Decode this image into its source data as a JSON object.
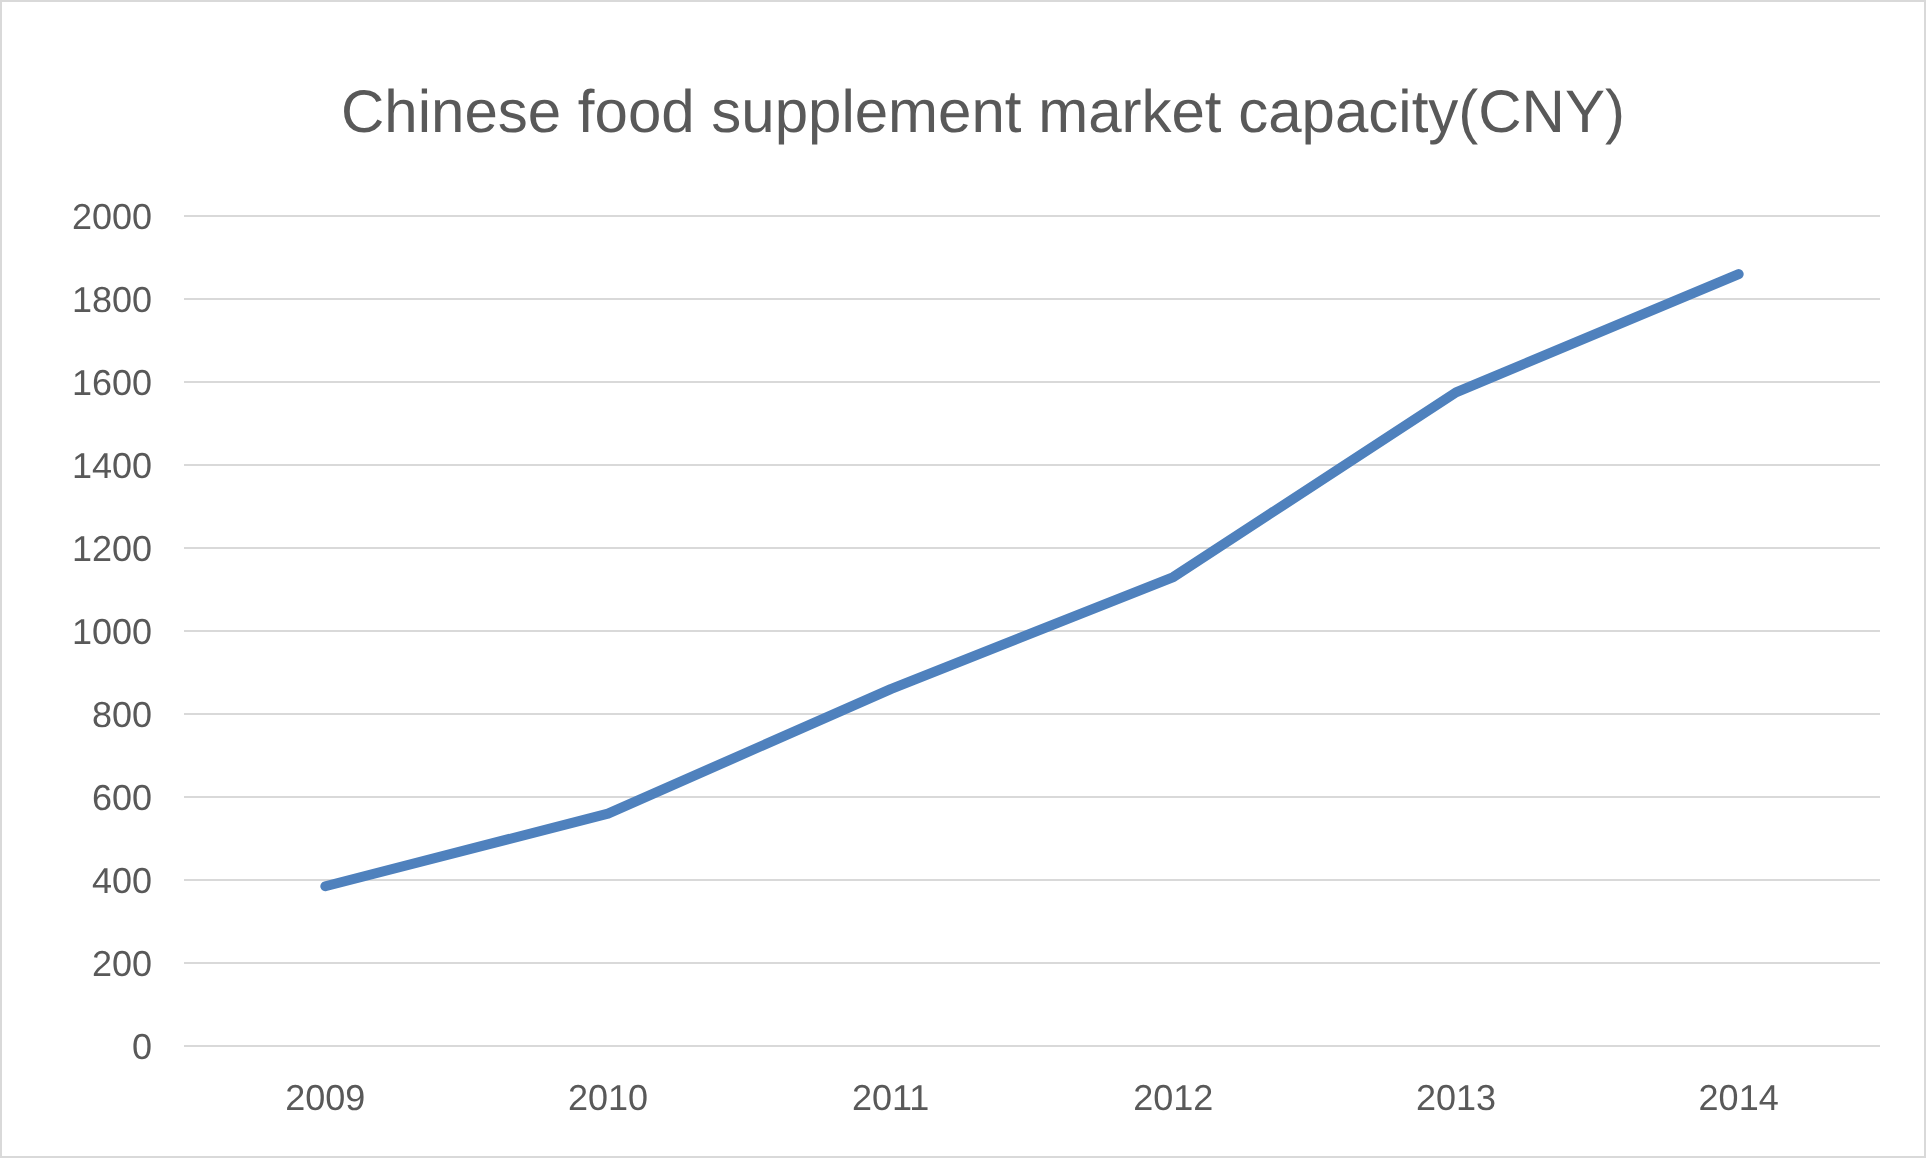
{
  "chart_data": {
    "type": "line",
    "title": "Chinese food supplement market capacity(CNY)",
    "categories": [
      "2009",
      "2010",
      "2011",
      "2012",
      "2013",
      "2014"
    ],
    "series": [
      {
        "color": "#4f81bd",
        "values": [
          385,
          560,
          860,
          1130,
          1575,
          1860
        ]
      }
    ],
    "ylim": [
      0,
      2000
    ],
    "yticks": [
      0,
      200,
      400,
      600,
      800,
      1000,
      1200,
      1400,
      1600,
      1800,
      2000
    ],
    "grid": "y",
    "marker": "none",
    "line_style": "solid"
  }
}
